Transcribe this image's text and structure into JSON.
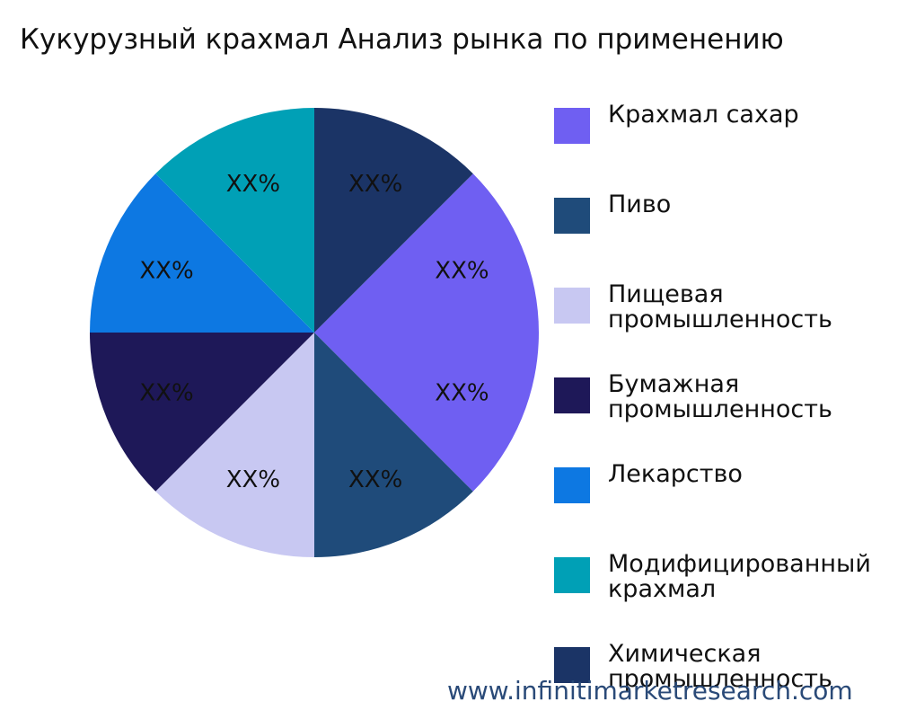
{
  "chart_data": {
    "type": "pie",
    "title": "Кукурузный крахмал Анализ рынка по применению",
    "categories": [
      "Крахмал сахар",
      "Крахмал сахар",
      "Пиво",
      "Пищевая промышленность",
      "Бумажная промышленность",
      "Лекарство",
      "Модифицированный крахмал",
      "Химическая промышленность"
    ],
    "values": [
      12.5,
      12.5,
      12.5,
      12.5,
      12.5,
      12.5,
      12.5,
      12.5
    ],
    "value_labels": [
      "XX%",
      "XX%",
      "XX%",
      "XX%",
      "XX%",
      "XX%",
      "XX%",
      "XX%"
    ],
    "colors": [
      "#6f5ff2",
      "#6f5ff2",
      "#1f4b7a",
      "#c8c8f2",
      "#1e1858",
      "#0d78e2",
      "#00a0b6",
      "#1b3466"
    ],
    "legend": "right",
    "watermark": "www.infinitimarketresearch.com"
  }
}
